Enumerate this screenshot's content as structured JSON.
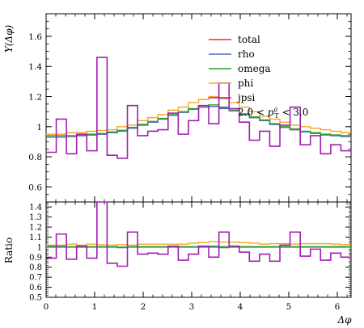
{
  "chart_data": [
    {
      "type": "line",
      "panel": "main",
      "ylabel": "Y(Δφ)",
      "xlabel": "",
      "xlim": [
        0,
        6.2832
      ],
      "ylim": [
        0.5,
        1.75
      ],
      "x_ticks": [
        "0",
        "1",
        "2",
        "3",
        "4",
        "5",
        "6"
      ],
      "y_ticks": [
        "0.6",
        "0.8",
        "1",
        "1.2",
        "1.4",
        "1.6"
      ],
      "annotation": "2.0 < p_T^a < 3.0",
      "legend_position": "top-right",
      "bin_edges": [
        0,
        0.2094,
        0.4189,
        0.6283,
        0.8378,
        1.0472,
        1.2566,
        1.4661,
        1.6755,
        1.885,
        2.0944,
        2.3038,
        2.5133,
        2.7227,
        2.9322,
        3.1416,
        3.351,
        3.5605,
        3.7699,
        3.9794,
        4.1888,
        4.3982,
        4.6077,
        4.8171,
        5.0265,
        5.236,
        5.4454,
        5.6549,
        5.8643,
        6.0737,
        6.2832
      ],
      "series": [
        {
          "name": "total",
          "color": "#e8311a",
          "values": [
            0.93,
            0.93,
            0.935,
            0.94,
            0.945,
            0.95,
            0.96,
            0.975,
            0.99,
            1.01,
            1.03,
            1.05,
            1.075,
            1.095,
            1.115,
            1.13,
            1.135,
            1.125,
            1.105,
            1.08,
            1.06,
            1.04,
            1.015,
            0.995,
            0.98,
            0.965,
            0.955,
            0.945,
            0.94,
            0.935
          ]
        },
        {
          "name": "rho",
          "color": "#4c6fc8",
          "values": [
            0.93,
            0.93,
            0.935,
            0.94,
            0.945,
            0.95,
            0.96,
            0.97,
            0.99,
            1.01,
            1.03,
            1.05,
            1.075,
            1.095,
            1.115,
            1.13,
            1.135,
            1.12,
            1.105,
            1.08,
            1.06,
            1.04,
            1.015,
            0.995,
            0.98,
            0.965,
            0.955,
            0.945,
            0.94,
            0.935
          ]
        },
        {
          "name": "omega",
          "color": "#2ca02c",
          "values": [
            0.94,
            0.94,
            0.94,
            0.945,
            0.95,
            0.955,
            0.965,
            0.975,
            0.995,
            1.015,
            1.035,
            1.055,
            1.08,
            1.1,
            1.12,
            1.14,
            1.145,
            1.13,
            1.11,
            1.085,
            1.065,
            1.045,
            1.02,
            1.0,
            0.985,
            0.97,
            0.96,
            0.95,
            0.945,
            0.94
          ]
        },
        {
          "name": "phi",
          "color": "#f5a623",
          "values": [
            0.95,
            0.95,
            0.96,
            0.96,
            0.97,
            0.975,
            0.98,
            1.0,
            1.01,
            1.04,
            1.06,
            1.08,
            1.11,
            1.13,
            1.16,
            1.18,
            1.2,
            1.185,
            1.16,
            1.13,
            1.1,
            1.07,
            1.05,
            1.03,
            1.01,
            1.0,
            0.99,
            0.98,
            0.97,
            0.96
          ]
        },
        {
          "name": "jpsi",
          "color": "#a020b0",
          "values": [
            0.83,
            1.05,
            0.82,
            0.95,
            0.84,
            1.46,
            0.81,
            0.79,
            1.14,
            0.94,
            0.97,
            0.98,
            1.09,
            0.95,
            1.04,
            1.14,
            1.02,
            1.29,
            1.12,
            1.03,
            0.91,
            0.97,
            0.87,
            1.01,
            1.13,
            0.88,
            0.94,
            0.82,
            0.88,
            0.84
          ]
        }
      ]
    },
    {
      "type": "line",
      "panel": "ratio",
      "ylabel": "Ratio",
      "xlabel": "Δφ",
      "xlim": [
        0,
        6.2832
      ],
      "ylim": [
        0.5,
        1.45
      ],
      "x_ticks": [
        "0",
        "1",
        "2",
        "3",
        "4",
        "5",
        "6"
      ],
      "y_ticks": [
        "0.5",
        "0.6",
        "0.7",
        "0.8",
        "0.9",
        "1",
        "1.1",
        "1.2",
        "1.3",
        "1.4"
      ],
      "series": [
        {
          "name": "rho",
          "color": "#4c6fc8",
          "values": [
            1.0,
            1.0,
            1.0,
            1.0,
            1.0,
            1.0,
            1.0,
            0.995,
            1.0,
            1.0,
            1.0,
            1.0,
            1.0,
            1.0,
            1.0,
            1.0,
            1.0,
            0.995,
            1.0,
            1.0,
            1.0,
            1.0,
            1.0,
            1.0,
            1.0,
            1.0,
            1.0,
            1.0,
            1.0,
            1.0
          ]
        },
        {
          "name": "omega",
          "color": "#2ca02c",
          "values": [
            1.01,
            1.01,
            1.005,
            1.005,
            1.005,
            1.005,
            1.005,
            1.0,
            1.005,
            1.005,
            1.005,
            1.005,
            1.005,
            1.005,
            1.005,
            1.01,
            1.01,
            1.005,
            1.005,
            1.005,
            1.005,
            1.005,
            1.005,
            1.005,
            1.005,
            1.005,
            1.005,
            1.005,
            1.005,
            1.005
          ]
        },
        {
          "name": "phi",
          "color": "#f5a623",
          "values": [
            1.02,
            1.02,
            1.03,
            1.02,
            1.03,
            1.025,
            1.02,
            1.025,
            1.02,
            1.03,
            1.03,
            1.03,
            1.03,
            1.03,
            1.04,
            1.045,
            1.055,
            1.05,
            1.05,
            1.045,
            1.04,
            1.03,
            1.035,
            1.035,
            1.03,
            1.035,
            1.035,
            1.035,
            1.03,
            1.025
          ]
        },
        {
          "name": "jpsi",
          "color": "#a020b0",
          "values": [
            0.89,
            1.13,
            0.88,
            1.01,
            0.89,
            1.54,
            0.84,
            0.81,
            1.15,
            0.93,
            0.94,
            0.93,
            1.01,
            0.87,
            0.93,
            1.01,
            0.9,
            1.15,
            1.01,
            0.95,
            0.86,
            0.93,
            0.86,
            1.02,
            1.15,
            0.91,
            0.98,
            0.87,
            0.94,
            0.9
          ]
        }
      ]
    }
  ]
}
